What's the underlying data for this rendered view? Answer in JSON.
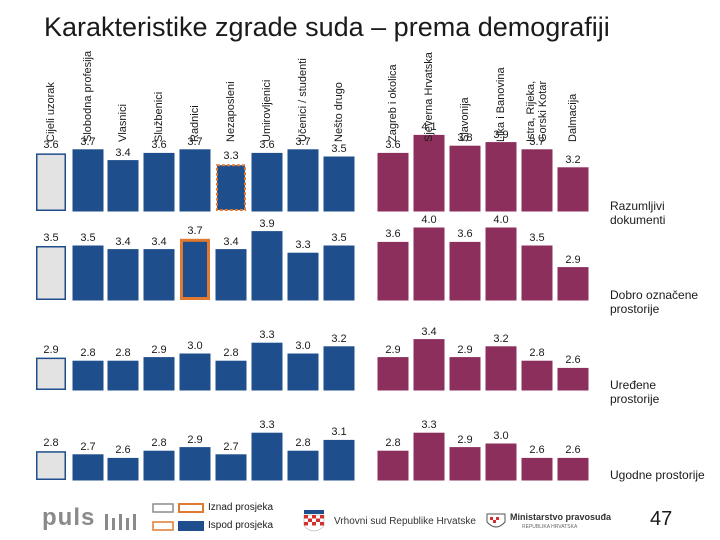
{
  "title": "Karakteristike zgrade suda – prema demografiji",
  "chart_data": {
    "type": "bar",
    "title": "Karakteristike zgrade suda – prema demografiji",
    "ylim": [
      0,
      5
    ],
    "categories": [
      "Cijeli uzorak",
      "Slobodna profesija",
      "Vlasnici",
      "Službenici",
      "Radnici",
      "Nezaposleni",
      "Umirovljenici",
      "Učenici / studenti",
      "Nešto drugo",
      "Zagreb i okolica",
      "Sjeverna Hrvatska",
      "Slavonija",
      "Lika i Banovina",
      "Istra, Rijeka, Gorski Kotar",
      "Dalmacija"
    ],
    "series": [
      {
        "name": "Razumljivi dokumenti",
        "values": [
          3.6,
          3.7,
          3.4,
          3.6,
          3.7,
          3.3,
          3.6,
          3.7,
          3.5,
          3.6,
          4.1,
          3.8,
          3.9,
          3.7,
          3.2
        ],
        "labels": [
          "3.6",
          "3.7",
          "3.4",
          "3.6",
          "3.7",
          "3.3",
          "3.6",
          "3.7",
          "3.5",
          "3.6",
          "4.1",
          "3.8",
          "3.9",
          "3.7",
          "3.2"
        ],
        "flags": [
          "baseline",
          "",
          "",
          "",
          "",
          "below",
          "",
          "",
          "",
          "",
          "",
          "",
          "",
          "",
          ""
        ]
      },
      {
        "name": "Dobro označene prostorije",
        "values": [
          3.5,
          3.5,
          3.4,
          3.4,
          3.7,
          3.4,
          3.9,
          3.3,
          3.5,
          3.6,
          4.0,
          3.6,
          4.0,
          3.5,
          2.9
        ],
        "labels": [
          "3.5",
          "3.5",
          "3.4",
          "3.4",
          "3.7",
          "3.4",
          "3.9",
          "3.3",
          "3.5",
          "3.6",
          "4.0",
          "3.6",
          "4.0",
          "3.5",
          "2.9"
        ],
        "flags": [
          "baseline",
          "",
          "",
          "",
          "above",
          "",
          "",
          "",
          "",
          "",
          "",
          "",
          "",
          "",
          ""
        ]
      },
      {
        "name": "Uređene prostorije",
        "values": [
          2.9,
          2.8,
          2.8,
          2.9,
          3.0,
          2.8,
          3.3,
          3.0,
          3.2,
          2.9,
          3.4,
          2.9,
          3.2,
          2.8,
          2.6
        ],
        "labels": [
          "2.9",
          "2.8",
          "2.8",
          "2.9",
          "3.0",
          "2.8",
          "3.3",
          "3.0",
          "3.2",
          "2.9",
          "3.4",
          "2.9",
          "3.2",
          "2.8",
          "2.6"
        ],
        "flags": [
          "baseline",
          "",
          "",
          "",
          "",
          "",
          "",
          "",
          "",
          "",
          "",
          "",
          "",
          "",
          ""
        ]
      },
      {
        "name": "Ugodne prostorije",
        "values": [
          2.8,
          2.7,
          2.6,
          2.8,
          2.9,
          2.7,
          3.3,
          2.8,
          3.1,
          2.8,
          3.3,
          2.9,
          3.0,
          2.6,
          2.6
        ],
        "labels": [
          "2.8",
          "2.7",
          "2.6",
          "2.8",
          "2.9",
          "2.7",
          "3.3",
          "2.8",
          "3.1",
          "2.8",
          "3.3",
          "2.9",
          "3.0",
          "2.6",
          "2.6"
        ],
        "flags": [
          "baseline",
          "",
          "",
          "",
          "",
          "",
          "",
          "",
          "",
          "",
          "",
          "",
          "",
          "",
          ""
        ]
      }
    ],
    "legend": [
      {
        "key": "above",
        "label": "Iznad prosjeka"
      },
      {
        "key": "below",
        "label": "Ispod prosjeka"
      }
    ]
  },
  "colors": {
    "baseline_fill": "#e3e3e3",
    "baseline_stroke": "#1f4e8c",
    "demographic": "#1f4e8c",
    "regional": "#8c2f5c",
    "above_stroke": "#e07a30",
    "below_stroke": "#e07a30"
  },
  "footer": {
    "logo": "puls",
    "court": "Vrhovni sud Republike Hrvatske",
    "ministry": "Ministarstvo pravosuđa",
    "ministry_sub": "REPUBLIKA HRVATSKA",
    "page_number": "47"
  }
}
